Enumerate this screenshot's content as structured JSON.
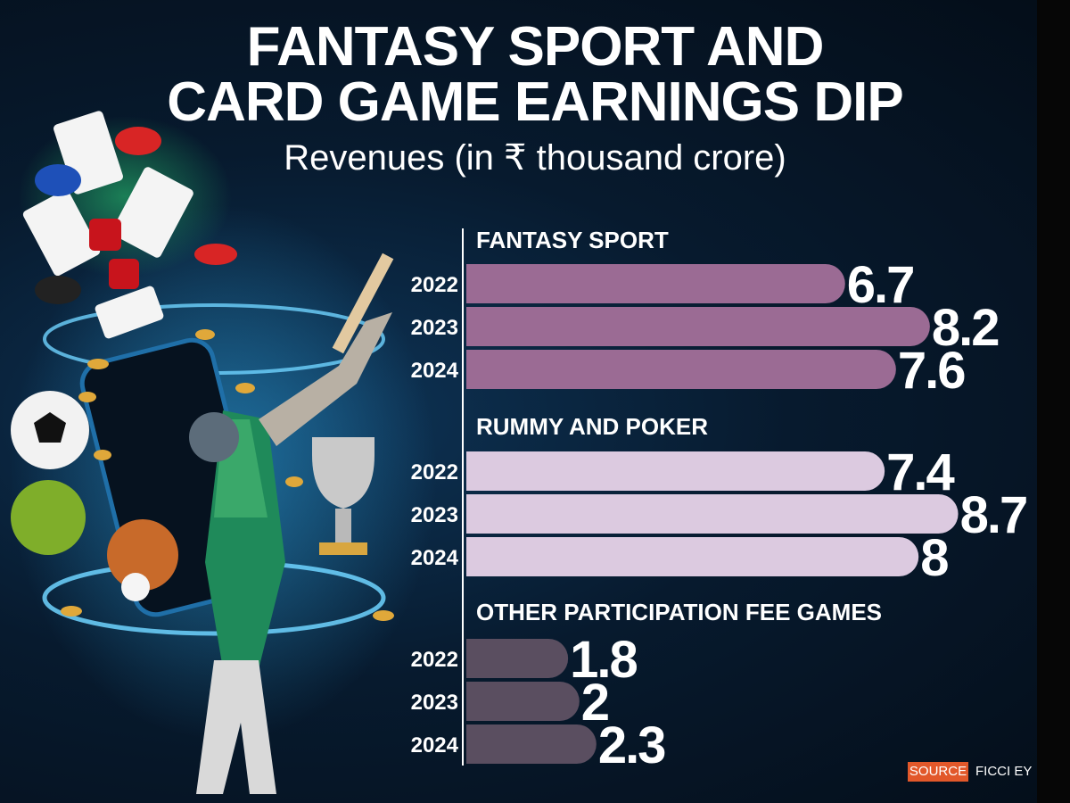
{
  "title_lines": [
    "FANTASY SPORT AND",
    "CARD GAME EARNINGS DIP"
  ],
  "subtitle": "Revenues (in ₹ thousand crore)",
  "source": {
    "label": "SOURCE",
    "value": "FICCI EY"
  },
  "colors": {
    "fantasy": "#9b6b94",
    "rummy": "#dccae0",
    "other": "#5a4e60"
  },
  "chart_data": {
    "type": "bar",
    "orientation": "horizontal",
    "groups": [
      {
        "name": "FANTASY SPORT",
        "categories": [
          "2022",
          "2023",
          "2024"
        ],
        "values": [
          6.7,
          8.2,
          7.6
        ],
        "labels": [
          "6.7",
          "8.2",
          "7.6"
        ]
      },
      {
        "name": "RUMMY AND POKER",
        "categories": [
          "2022",
          "2023",
          "2024"
        ],
        "values": [
          7.4,
          8.7,
          8
        ],
        "labels": [
          "7.4",
          "8.7",
          "8"
        ]
      },
      {
        "name": "OTHER PARTICIPATION FEE GAMES",
        "categories": [
          "2022",
          "2023",
          "2024"
        ],
        "values": [
          1.8,
          2,
          2.3
        ],
        "labels": [
          "1.8",
          "2",
          "2.3"
        ]
      }
    ]
  }
}
